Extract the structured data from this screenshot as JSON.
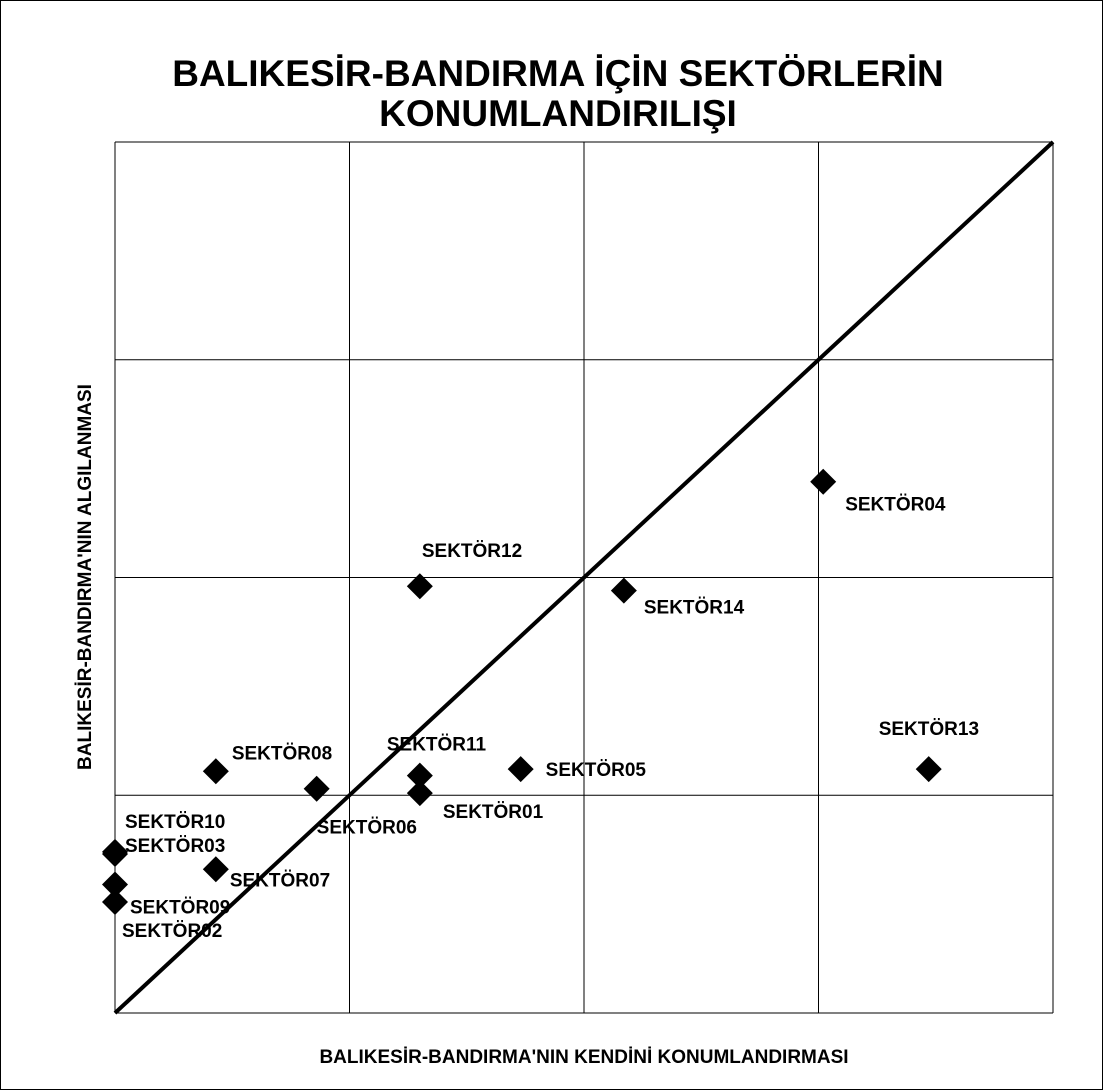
{
  "chart_data": {
    "type": "scatter",
    "title": "BALIKESİR-BANDIRMA İÇİN SEKTÖRLERİN",
    "title_line2": "KONUMLANDIRILIŞI",
    "x_label": "BALIKESİR-BANDIRMA'NIN KENDİNİ KONUMLANDIRMASI",
    "y_label": "BALIKESİR-BANDIRMA'NIN ALGILANMASI",
    "labels": [
      "SEKTÖR01",
      "SEKTÖR02",
      "SEKTÖR03",
      "SEKTÖR04",
      "SEKTÖR05",
      "SEKTÖR06",
      "SEKTÖR07",
      "SEKTÖR08",
      "SEKTÖR09",
      "SEKTÖR10",
      "SEKTÖR11",
      "SEKTÖR12",
      "SEKTÖR13",
      "SEKTÖR14"
    ],
    "x": [
      1.3,
      0,
      0,
      3.02,
      1.73,
      0.86,
      0.43,
      0.43,
      0,
      0,
      1.3,
      1.3,
      3.47,
      2.17
    ],
    "values": [
      1.01,
      0.51,
      0.73,
      2.44,
      1.12,
      1.03,
      0.66,
      1.11,
      0.59,
      0.74,
      1.09,
      1.96,
      1.12,
      1.94
    ],
    "color": "#000000",
    "xlim": [
      0,
      4
    ],
    "ylim": [
      0,
      4
    ],
    "xticks": [
      0,
      1,
      2,
      3,
      4
    ],
    "yticks": [
      0,
      1,
      2,
      3,
      4
    ],
    "grid": true,
    "diagonal": true
  }
}
